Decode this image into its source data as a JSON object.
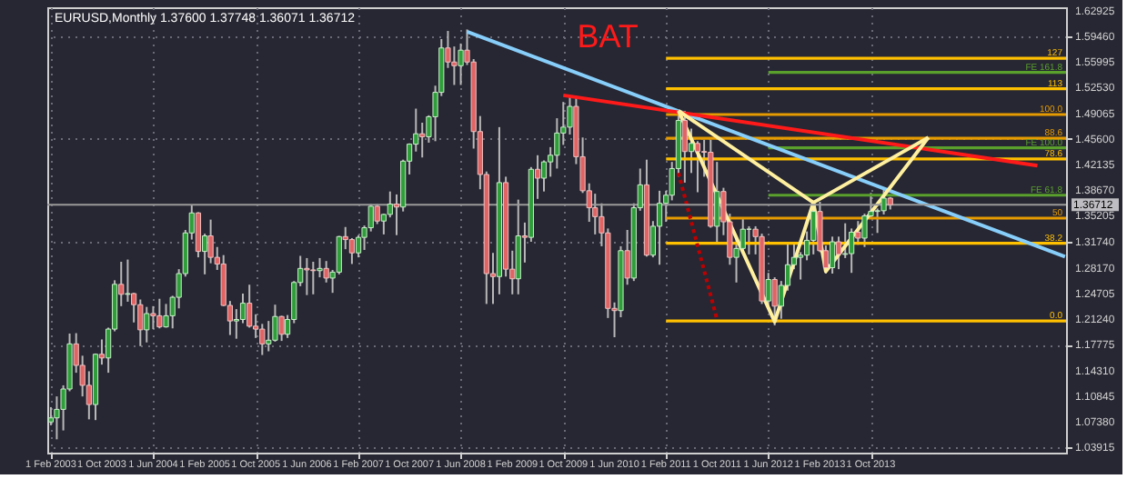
{
  "chart_data": {
    "type": "candlestick",
    "title": "EURUSD,Monthly  1.37600 1.37748 1.36071 1.36712",
    "annotations": [
      "BAT"
    ],
    "x": [
      "2003-02",
      "2003-03",
      "2003-04",
      "2003-05",
      "2003-06",
      "2003-07",
      "2003-08",
      "2003-09",
      "2003-10",
      "2003-11",
      "2003-12",
      "2004-01",
      "2004-02",
      "2004-03",
      "2004-04",
      "2004-05",
      "2004-06",
      "2004-07",
      "2004-08",
      "2004-09",
      "2004-10",
      "2004-11",
      "2004-12",
      "2005-01",
      "2005-02",
      "2005-03",
      "2005-04",
      "2005-05",
      "2005-06",
      "2005-07",
      "2005-08",
      "2005-09",
      "2005-10",
      "2005-11",
      "2005-12",
      "2006-01",
      "2006-02",
      "2006-03",
      "2006-04",
      "2006-05",
      "2006-06",
      "2006-07",
      "2006-08",
      "2006-09",
      "2006-10",
      "2006-11",
      "2006-12",
      "2007-01",
      "2007-02",
      "2007-03",
      "2007-04",
      "2007-05",
      "2007-06",
      "2007-07",
      "2007-08",
      "2007-09",
      "2007-10",
      "2007-11",
      "2007-12",
      "2008-01",
      "2008-02",
      "2008-03",
      "2008-04",
      "2008-05",
      "2008-06",
      "2008-07",
      "2008-08",
      "2008-09",
      "2008-10",
      "2008-11",
      "2008-12",
      "2009-01",
      "2009-02",
      "2009-03",
      "2009-04",
      "2009-05",
      "2009-06",
      "2009-07",
      "2009-08",
      "2009-09",
      "2009-10",
      "2009-11",
      "2009-12",
      "2010-01",
      "2010-02",
      "2010-03",
      "2010-04",
      "2010-05",
      "2010-06",
      "2010-07",
      "2010-08",
      "2010-09",
      "2010-10",
      "2010-11",
      "2010-12",
      "2011-01",
      "2011-02",
      "2011-03",
      "2011-04",
      "2011-05",
      "2011-06",
      "2011-07",
      "2011-08",
      "2011-09",
      "2011-10",
      "2011-11",
      "2011-12",
      "2012-01",
      "2012-02",
      "2012-03",
      "2012-04",
      "2012-05",
      "2012-06",
      "2012-07",
      "2012-08",
      "2012-09",
      "2012-10",
      "2012-11",
      "2012-12",
      "2013-01",
      "2013-02",
      "2013-03",
      "2013-04",
      "2013-05",
      "2013-06",
      "2013-07",
      "2013-08",
      "2013-09",
      "2013-10",
      "2013-11",
      "2013-12",
      "2014-01"
    ],
    "ohlc": [
      [
        1.0735,
        1.0935,
        1.069,
        1.079
      ],
      [
        1.079,
        1.108,
        1.05,
        1.0905
      ],
      [
        1.0905,
        1.123,
        1.062,
        1.118
      ],
      [
        1.118,
        1.193,
        1.115,
        1.179
      ],
      [
        1.179,
        1.1935,
        1.14,
        1.15
      ],
      [
        1.15,
        1.163,
        1.108,
        1.123
      ],
      [
        1.123,
        1.142,
        1.077,
        1.097
      ],
      [
        1.097,
        1.166,
        1.076,
        1.165
      ],
      [
        1.165,
        1.185,
        1.151,
        1.16
      ],
      [
        1.16,
        1.201,
        1.14,
        1.199
      ],
      [
        1.199,
        1.265,
        1.196,
        1.2595
      ],
      [
        1.2595,
        1.29,
        1.23,
        1.246
      ],
      [
        1.246,
        1.293,
        1.236,
        1.247
      ],
      [
        1.247,
        1.248,
        1.208,
        1.232
      ],
      [
        1.232,
        1.239,
        1.176,
        1.198
      ],
      [
        1.198,
        1.229,
        1.181,
        1.22
      ],
      [
        1.22,
        1.23,
        1.199,
        1.217
      ],
      [
        1.217,
        1.24,
        1.2,
        1.202
      ],
      [
        1.202,
        1.233,
        1.201,
        1.217
      ],
      [
        1.217,
        1.244,
        1.2,
        1.242
      ],
      [
        1.242,
        1.28,
        1.227,
        1.274
      ],
      [
        1.274,
        1.333,
        1.27,
        1.329
      ],
      [
        1.329,
        1.367,
        1.32,
        1.356
      ],
      [
        1.356,
        1.357,
        1.296,
        1.304
      ],
      [
        1.304,
        1.328,
        1.273,
        1.325
      ],
      [
        1.325,
        1.347,
        1.288,
        1.296
      ],
      [
        1.296,
        1.31,
        1.279,
        1.287
      ],
      [
        1.287,
        1.299,
        1.23,
        1.231
      ],
      [
        1.231,
        1.237,
        1.191,
        1.21
      ],
      [
        1.21,
        1.226,
        1.186,
        1.212
      ],
      [
        1.212,
        1.247,
        1.207,
        1.234
      ],
      [
        1.234,
        1.259,
        1.201,
        1.203
      ],
      [
        1.203,
        1.219,
        1.187,
        1.199
      ],
      [
        1.199,
        1.206,
        1.164,
        1.179
      ],
      [
        1.179,
        1.21,
        1.169,
        1.184
      ],
      [
        1.184,
        1.232,
        1.182,
        1.216
      ],
      [
        1.216,
        1.217,
        1.183,
        1.192
      ],
      [
        1.192,
        1.218,
        1.187,
        1.212
      ],
      [
        1.212,
        1.264,
        1.207,
        1.262
      ],
      [
        1.262,
        1.298,
        1.257,
        1.281
      ],
      [
        1.281,
        1.295,
        1.245,
        1.279
      ],
      [
        1.279,
        1.29,
        1.246,
        1.278
      ],
      [
        1.278,
        1.295,
        1.269,
        1.281
      ],
      [
        1.281,
        1.291,
        1.262,
        1.268
      ],
      [
        1.268,
        1.279,
        1.248,
        1.276
      ],
      [
        1.276,
        1.325,
        1.273,
        1.324
      ],
      [
        1.324,
        1.337,
        1.307,
        1.32
      ],
      [
        1.32,
        1.322,
        1.287,
        1.302
      ],
      [
        1.302,
        1.326,
        1.296,
        1.323
      ],
      [
        1.323,
        1.339,
        1.306,
        1.336
      ],
      [
        1.336,
        1.368,
        1.331,
        1.365
      ],
      [
        1.365,
        1.368,
        1.341,
        1.345
      ],
      [
        1.345,
        1.355,
        1.327,
        1.354
      ],
      [
        1.354,
        1.385,
        1.35,
        1.368
      ],
      [
        1.368,
        1.381,
        1.326,
        1.364
      ],
      [
        1.364,
        1.428,
        1.358,
        1.426
      ],
      [
        1.426,
        1.45,
        1.408,
        1.449
      ],
      [
        1.449,
        1.497,
        1.439,
        1.463
      ],
      [
        1.463,
        1.478,
        1.431,
        1.459
      ],
      [
        1.459,
        1.488,
        1.451,
        1.486
      ],
      [
        1.486,
        1.528,
        1.453,
        1.519
      ],
      [
        1.519,
        1.591,
        1.514,
        1.579
      ],
      [
        1.579,
        1.602,
        1.552,
        1.56
      ],
      [
        1.56,
        1.581,
        1.529,
        1.555
      ],
      [
        1.555,
        1.585,
        1.529,
        1.576
      ],
      [
        1.576,
        1.604,
        1.556,
        1.56
      ],
      [
        1.56,
        1.564,
        1.443,
        1.466
      ],
      [
        1.466,
        1.487,
        1.388,
        1.408
      ],
      [
        1.408,
        1.412,
        1.233,
        1.274
      ],
      [
        1.274,
        1.302,
        1.233,
        1.27
      ],
      [
        1.27,
        1.472,
        1.246,
        1.397
      ],
      [
        1.397,
        1.405,
        1.27,
        1.28
      ],
      [
        1.28,
        1.305,
        1.246,
        1.267
      ],
      [
        1.267,
        1.374,
        1.246,
        1.325
      ],
      [
        1.325,
        1.343,
        1.289,
        1.323
      ],
      [
        1.323,
        1.418,
        1.317,
        1.415
      ],
      [
        1.415,
        1.434,
        1.375,
        1.403
      ],
      [
        1.403,
        1.427,
        1.385,
        1.425
      ],
      [
        1.425,
        1.445,
        1.405,
        1.434
      ],
      [
        1.434,
        1.484,
        1.416,
        1.464
      ],
      [
        1.464,
        1.506,
        1.448,
        1.472
      ],
      [
        1.472,
        1.514,
        1.462,
        1.5
      ],
      [
        1.5,
        1.514,
        1.422,
        1.432
      ],
      [
        1.432,
        1.458,
        1.383,
        1.386
      ],
      [
        1.386,
        1.396,
        1.344,
        1.363
      ],
      [
        1.363,
        1.382,
        1.327,
        1.351
      ],
      [
        1.351,
        1.369,
        1.311,
        1.329
      ],
      [
        1.329,
        1.335,
        1.214,
        1.227
      ],
      [
        1.227,
        1.235,
        1.188,
        1.224
      ],
      [
        1.224,
        1.311,
        1.215,
        1.305
      ],
      [
        1.305,
        1.333,
        1.259,
        1.268
      ],
      [
        1.268,
        1.369,
        1.264,
        1.363
      ],
      [
        1.363,
        1.416,
        1.359,
        1.394
      ],
      [
        1.394,
        1.428,
        1.297,
        1.299
      ],
      [
        1.299,
        1.345,
        1.296,
        1.338
      ],
      [
        1.338,
        1.386,
        1.286,
        1.369
      ],
      [
        1.369,
        1.386,
        1.344,
        1.38
      ],
      [
        1.38,
        1.425,
        1.373,
        1.416
      ],
      [
        1.416,
        1.488,
        1.405,
        1.481
      ],
      [
        1.481,
        1.494,
        1.397,
        1.439
      ],
      [
        1.439,
        1.47,
        1.41,
        1.45
      ],
      [
        1.45,
        1.453,
        1.384,
        1.439
      ],
      [
        1.439,
        1.455,
        1.405,
        1.438
      ],
      [
        1.438,
        1.455,
        1.336,
        1.338
      ],
      [
        1.338,
        1.425,
        1.315,
        1.385
      ],
      [
        1.385,
        1.39,
        1.326,
        1.344
      ],
      [
        1.344,
        1.355,
        1.286,
        1.296
      ],
      [
        1.296,
        1.323,
        1.262,
        1.308
      ],
      [
        1.308,
        1.349,
        1.304,
        1.334
      ],
      [
        1.334,
        1.338,
        1.3,
        1.334
      ],
      [
        1.334,
        1.338,
        1.3,
        1.324
      ],
      [
        1.324,
        1.328,
        1.233,
        1.237
      ],
      [
        1.237,
        1.275,
        1.229,
        1.266
      ],
      [
        1.266,
        1.269,
        1.204,
        1.23
      ],
      [
        1.23,
        1.264,
        1.213,
        1.258
      ],
      [
        1.258,
        1.317,
        1.251,
        1.286
      ],
      [
        1.286,
        1.314,
        1.28,
        1.296
      ],
      [
        1.296,
        1.303,
        1.266,
        1.299
      ],
      [
        1.299,
        1.331,
        1.292,
        1.319
      ],
      [
        1.319,
        1.371,
        1.3,
        1.358
      ],
      [
        1.358,
        1.371,
        1.303,
        1.305
      ],
      [
        1.305,
        1.312,
        1.274,
        1.282
      ],
      [
        1.282,
        1.324,
        1.274,
        1.317
      ],
      [
        1.317,
        1.324,
        1.28,
        1.3
      ],
      [
        1.3,
        1.342,
        1.295,
        1.301
      ],
      [
        1.301,
        1.335,
        1.275,
        1.33
      ],
      [
        1.33,
        1.345,
        1.313,
        1.322
      ],
      [
        1.322,
        1.355,
        1.31,
        1.352
      ],
      [
        1.352,
        1.383,
        1.349,
        1.358
      ],
      [
        1.358,
        1.362,
        1.329,
        1.359
      ],
      [
        1.359,
        1.389,
        1.354,
        1.376
      ],
      [
        1.376,
        1.37748,
        1.36071,
        1.36712
      ]
    ],
    "series": [
      {
        "type": "line",
        "name": "127",
        "color": "#ffc000",
        "x": [
          "2011-02",
          "2016-04-15"
        ],
        "values": [
          1.565,
          1.565
        ]
      },
      {
        "type": "line",
        "name": "FE 161.8",
        "color": "#5aa02c",
        "x": [
          "2012-06",
          "2016-04-15"
        ],
        "values": [
          1.546,
          1.546
        ]
      },
      {
        "type": "line",
        "name": "113",
        "color": "#ffc000",
        "x": [
          "2011-02",
          "2016-04-15"
        ],
        "values": [
          1.524,
          1.524
        ]
      },
      {
        "type": "line",
        "name": "100.0",
        "color": "#e69b00",
        "x": [
          "2011-02",
          "2016-04-15"
        ],
        "values": [
          1.489,
          1.489
        ]
      },
      {
        "type": "line",
        "name": "88.6",
        "color": "#e69b00",
        "x": [
          "2011-02",
          "2016-04-15"
        ],
        "values": [
          1.457,
          1.457
        ]
      },
      {
        "type": "line",
        "name": "FE 100.0",
        "color": "#5aa02c",
        "x": [
          "2012-06",
          "2016-04-15"
        ],
        "values": [
          1.444,
          1.444
        ]
      },
      {
        "type": "line",
        "name": "78.6",
        "color": "#ffc000",
        "x": [
          "2011-02",
          "2016-04-15"
        ],
        "values": [
          1.429,
          1.429
        ]
      },
      {
        "type": "line",
        "name": "FE 61.8",
        "color": "#5aa02c",
        "x": [
          "2012-06",
          "2016-04-15"
        ],
        "values": [
          1.38,
          1.38
        ]
      },
      {
        "type": "line",
        "name": "50",
        "color": "#e69b00",
        "x": [
          "2011-02",
          "2016-04-15"
        ],
        "values": [
          1.349,
          1.349
        ]
      },
      {
        "type": "line",
        "name": "38.2",
        "color": "#ffc000",
        "x": [
          "2011-02",
          "2016-04-15"
        ],
        "values": [
          1.315,
          1.315
        ]
      },
      {
        "type": "line",
        "name": "0.0",
        "color": "#ffc000",
        "x": [
          "2011-02",
          "2016-04-15"
        ],
        "values": [
          1.21,
          1.21
        ]
      },
      {
        "type": "line",
        "color": "#87cefa",
        "x": [
          "2008-07",
          "2016-04-10"
        ],
        "values": [
          1.601,
          1.297
        ]
      },
      {
        "type": "line",
        "color": "#ff1a1a",
        "x": [
          "2009-10",
          "2015-12"
        ],
        "values": [
          1.515,
          1.42
        ]
      },
      {
        "type": "line",
        "color": "#c00000",
        "line_style": "dotted",
        "x": [
          "2011-04",
          "2011-10"
        ],
        "values": [
          1.41,
          1.212
        ]
      },
      {
        "type": "line",
        "color": "#fff0a0",
        "x": [
          "2011-04",
          "2012-07",
          "2013-01",
          "2013-03",
          "2014-07"
        ],
        "values": [
          1.494,
          1.209,
          1.37,
          1.277,
          1.458
        ]
      },
      {
        "type": "line",
        "color": "#fff0a0",
        "x": [
          "2011-04",
          "2013-01"
        ],
        "values": [
          1.494,
          1.37
        ]
      },
      {
        "type": "line",
        "color": "#fff0a0",
        "x": [
          "2013-01",
          "2014-07"
        ],
        "values": [
          1.37,
          1.458
        ]
      }
    ],
    "ref_lines": [
      {
        "axis": "y",
        "value": 1.36712,
        "label": "1.36712",
        "color": "#9a9a9a"
      }
    ],
    "xlim": [
      "2003-01-15",
      "2016-04-15"
    ],
    "xticks": [
      {
        "value": "2003-02-01",
        "label": "1 Feb 2003"
      },
      {
        "value": "2003-10-01",
        "label": "1 Oct 2003"
      },
      {
        "value": "2004-06-01",
        "label": "1 Jun 2004"
      },
      {
        "value": "2005-02-01",
        "label": "1 Feb 2005"
      },
      {
        "value": "2005-10-01",
        "label": "1 Oct 2005"
      },
      {
        "value": "2006-06-01",
        "label": "1 Jun 2006"
      },
      {
        "value": "2007-02-01",
        "label": "1 Feb 2007"
      },
      {
        "value": "2007-10-01",
        "label": "1 Oct 2007"
      },
      {
        "value": "2008-06-01",
        "label": "1 Jun 2008"
      },
      {
        "value": "2009-02-01",
        "label": "1 Feb 2009"
      },
      {
        "value": "2009-10-01",
        "label": "1 Oct 2009"
      },
      {
        "value": "2010-06-01",
        "label": "1 Jun 2010"
      },
      {
        "value": "2011-02-01",
        "label": "1 Feb 2011"
      },
      {
        "value": "2011-10-01",
        "label": "1 Oct 2011"
      },
      {
        "value": "2012-06-01",
        "label": "1 Jun 2012"
      },
      {
        "value": "2013-02-01",
        "label": "1 Feb 2013"
      },
      {
        "value": "2013-10-01",
        "label": "1 Oct 2013"
      }
    ],
    "ylim": [
      1.032,
      1.634
    ],
    "yticks": [
      {
        "value": 1.03915,
        "label": "1.03915"
      },
      {
        "value": 1.0738,
        "label": "1.07380"
      },
      {
        "value": 1.10845,
        "label": "1.10845"
      },
      {
        "value": 1.1431,
        "label": "1.14310"
      },
      {
        "value": 1.17775,
        "label": "1.17775"
      },
      {
        "value": 1.2124,
        "label": "1.21240"
      },
      {
        "value": 1.24705,
        "label": "1.24705"
      },
      {
        "value": 1.2817,
        "label": "1.28170"
      },
      {
        "value": 1.3174,
        "label": "1.31740"
      },
      {
        "value": 1.35205,
        "label": "1.35205"
      },
      {
        "value": 1.3867,
        "label": "1.38670"
      },
      {
        "value": 1.42135,
        "label": "1.42135"
      },
      {
        "value": 1.456,
        "label": "1.45600"
      },
      {
        "value": 1.49065,
        "label": "1.49065"
      },
      {
        "value": 1.5253,
        "label": "1.52530"
      },
      {
        "value": 1.55995,
        "label": "1.55995"
      },
      {
        "value": 1.5946,
        "label": "1.59460"
      },
      {
        "value": 1.62925,
        "label": "1.62925"
      }
    ],
    "grid": true
  }
}
